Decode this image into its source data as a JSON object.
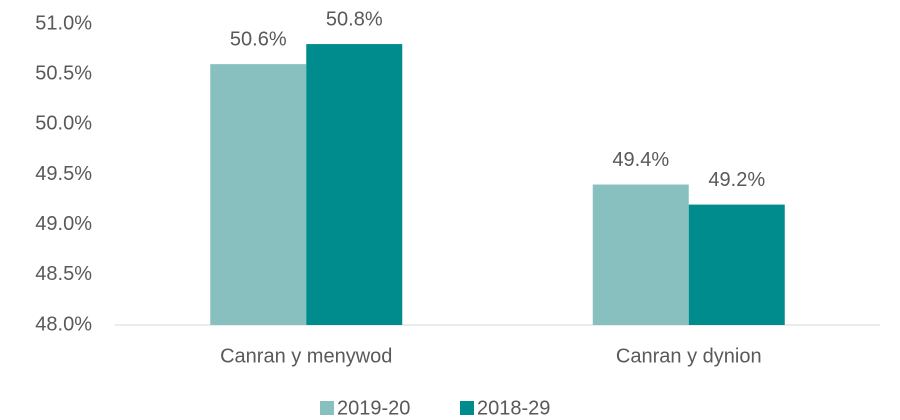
{
  "chart_data": {
    "type": "bar",
    "categories": [
      "Canran y menywod",
      "Canran y dynion"
    ],
    "series": [
      {
        "name": "2019-20",
        "color": "#88bfbf",
        "values": [
          50.6,
          49.4
        ],
        "value_labels": [
          "50.6%",
          "49.4%"
        ]
      },
      {
        "name": "2018-29",
        "color": "#008c8c",
        "values": [
          50.8,
          49.2
        ],
        "value_labels": [
          "50.8%",
          "49.2%"
        ]
      }
    ],
    "ylim": [
      48,
      51
    ],
    "yticks": [
      {
        "value": 48,
        "label": "48.0%"
      },
      {
        "value": 48.5,
        "label": "48.5%"
      },
      {
        "value": 49,
        "label": "49.0%"
      },
      {
        "value": 49.5,
        "label": "49.5%"
      },
      {
        "value": 50,
        "label": "50.0%"
      },
      {
        "value": 50.5,
        "label": "50.5%"
      },
      {
        "value": 51,
        "label": "51.0%"
      }
    ],
    "legend": "bottom"
  }
}
